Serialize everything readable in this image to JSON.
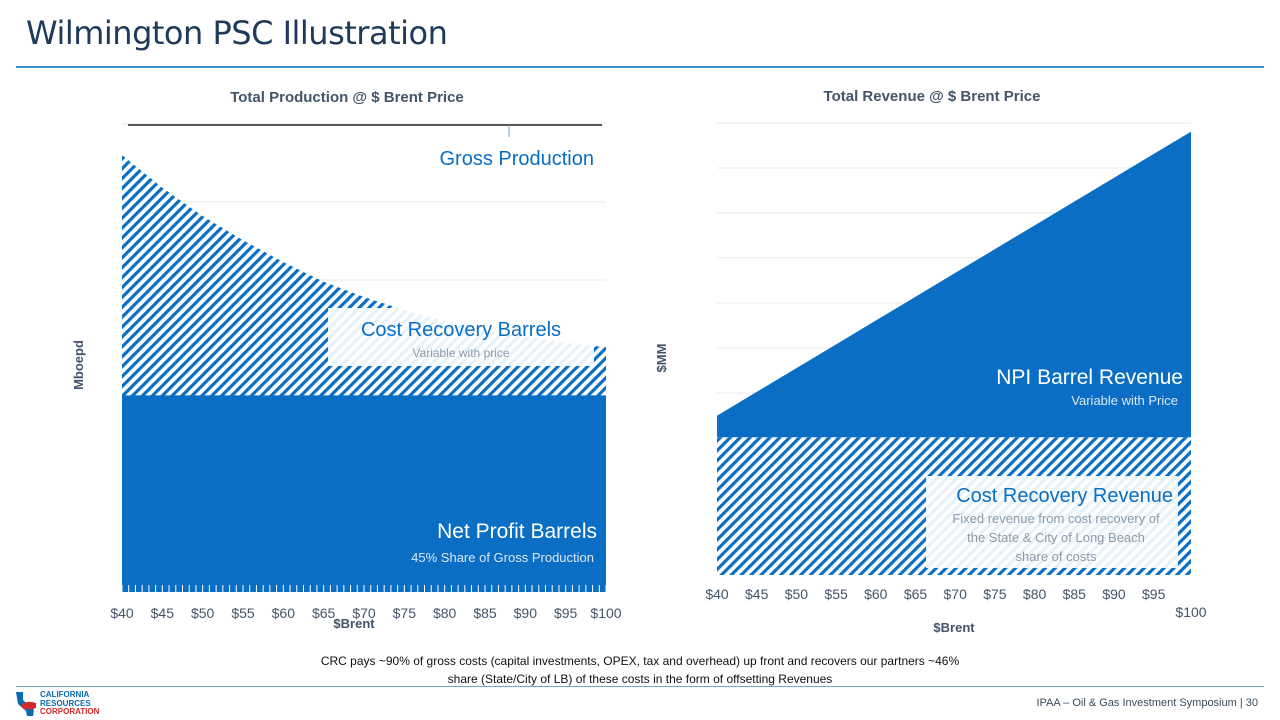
{
  "slide": {
    "title": "Wilmington PSC Illustration",
    "footnote_line1": "CRC pays ~90% of gross costs (capital investments, OPEX, tax and overhead) up front and recovers our partners ~46%",
    "footnote_line2": "share (State/City of LB) of these costs in the form of offsetting Revenues",
    "footer": "IPAA – Oil & Gas Investment Symposium | 30",
    "logo": {
      "line1": "CALIFORNIA",
      "line2": "RESOURCES",
      "line3": "CORPORATION"
    }
  },
  "colors": {
    "blue": "#0a6ec4",
    "title": "#1f3a5a",
    "axis_label": "#44546a",
    "muted": "#8a9aaa"
  },
  "chart_data": [
    {
      "type": "area",
      "title": "Total Production @ $ Brent Price",
      "xlabel": "$Brent",
      "ylabel": "Mboepd",
      "categories": [
        "$40",
        "$45",
        "$50",
        "$55",
        "$60",
        "$65",
        "$70",
        "$75",
        "$80",
        "$85",
        "$90",
        "$95",
        "$100"
      ],
      "grid": true,
      "series": [
        {
          "name": "Net Profit Barrels",
          "fill": "solid",
          "values": [
            45,
            45,
            45,
            45,
            45,
            45,
            45,
            45,
            45,
            45,
            45,
            45,
            45
          ]
        },
        {
          "name": "Cost Recovery Barrels",
          "fill": "hatched",
          "values": [
            100,
            92.5,
            86,
            80.5,
            75.5,
            71,
            67.5,
            64.5,
            62,
            60,
            58.5,
            57,
            56
          ]
        }
      ],
      "annotations": [
        {
          "text": "Gross Production"
        },
        {
          "text": "Cost Recovery Barrels",
          "sub": "Variable with price"
        },
        {
          "text": "Net Profit Barrels",
          "sub": "45% Share of Gross Production"
        }
      ]
    },
    {
      "type": "area",
      "title": "Total Revenue @ $ Brent Price",
      "xlabel": "$Brent",
      "ylabel": "$MM",
      "categories": [
        "$40",
        "$45",
        "$50",
        "$55",
        "$60",
        "$65",
        "$70",
        "$75",
        "$80",
        "$85",
        "$90",
        "$95",
        "$100"
      ],
      "grid": true,
      "series": [
        {
          "name": "Cost Recovery Revenue",
          "fill": "hatched",
          "values": [
            32,
            32,
            32,
            32,
            32,
            32,
            32,
            32,
            32,
            32,
            32,
            32,
            32
          ]
        },
        {
          "name": "NPI Barrel Revenue",
          "fill": "solid",
          "values": [
            37,
            42.5,
            48,
            53.5,
            59,
            64.5,
            70,
            75.5,
            81,
            86.5,
            92,
            97.5,
            103
          ]
        }
      ],
      "annotations": [
        {
          "text": "NPI Barrel Revenue",
          "sub": "Variable with Price"
        },
        {
          "text": "Cost Recovery Revenue",
          "sub1": "Fixed revenue from cost recovery of",
          "sub2": "the State & City of Long Beach",
          "sub3": "share of costs"
        }
      ]
    }
  ]
}
